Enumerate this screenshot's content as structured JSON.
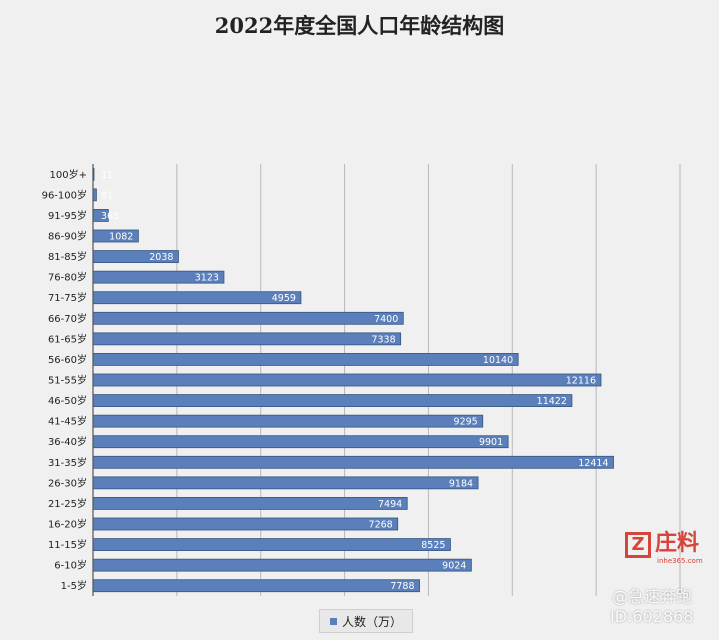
{
  "chart_data": {
    "type": "bar",
    "orientation": "horizontal",
    "title": "2022年度全国人口年龄结构图",
    "categories": [
      "100岁+",
      "96-100岁",
      "91-95岁",
      "86-90岁",
      "81-85岁",
      "76-80岁",
      "71-75岁",
      "66-70岁",
      "61-65岁",
      "56-60岁",
      "51-55岁",
      "46-50岁",
      "41-45岁",
      "36-40岁",
      "31-35岁",
      "26-30岁",
      "21-25岁",
      "16-20岁",
      "11-15岁",
      "6-10岁",
      "1-5岁"
    ],
    "series": [
      {
        "name": "人数（万）",
        "values": [
          11,
          81,
          365,
          1082,
          2038,
          3123,
          4959,
          7400,
          7338,
          10140,
          12116,
          11422,
          9295,
          9901,
          12414,
          9184,
          7494,
          7268,
          8525,
          9024,
          7788
        ],
        "labels": [
          "11",
          "81",
          "365",
          "1082",
          "2038",
          "3123",
          "4959",
          "7400",
          "7338",
          "10140",
          "12116",
          "11422",
          "9295",
          "9901",
          "12414",
          "9184",
          "7494",
          "7268",
          "8525",
          "9024",
          "7788"
        ]
      }
    ],
    "xlim": [
      0,
      14000
    ],
    "grid": true,
    "legend_position": "bottom",
    "bar_color": "#5a7fba"
  },
  "logo": {
    "mark": "Z",
    "text": "庄料",
    "sub": "inhe365.com"
  },
  "watermark": {
    "line1": "@急速奔跑",
    "line2": "ID:602868"
  }
}
